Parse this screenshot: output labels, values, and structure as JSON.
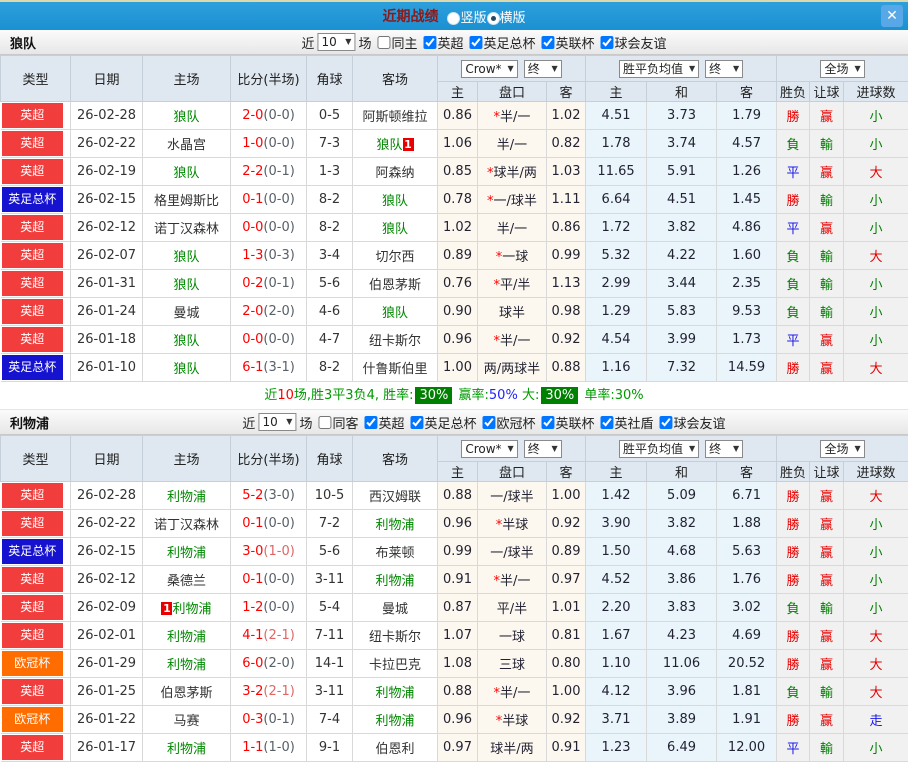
{
  "titlebar": {
    "title": "近期战绩",
    "close_glyph": "✕",
    "radios": [
      {
        "label": "竖版",
        "checked": false
      },
      {
        "label": "横版",
        "checked": true
      }
    ]
  },
  "colors": {
    "leagues": {
      "英超": "#f23d3d",
      "英足总杯": "#1512d0",
      "欧冠杯": "#ff6d00"
    },
    "results": {
      "勝": "#e60000",
      "負": "#008000",
      "平": "#1a1ae6",
      "赢": "#e60000",
      "輸": "#008000",
      "走": "#1a1ae6",
      "大": "#e60000",
      "小": "#008000"
    },
    "team_highlight": "#008800",
    "score_ft": "#ff0000",
    "score_ht": "#586068",
    "score_ht_alt": "#e06666",
    "summary_badge_bg": "#008000"
  },
  "table_header": {
    "main_cols": [
      "类型",
      "日期",
      "主场",
      "比分(半场)",
      "角球",
      "客场"
    ],
    "odds_selects": [
      "Crow*",
      "终"
    ],
    "avg_selects": [
      "胜平负均值",
      "终"
    ],
    "result_selects": [
      "全场"
    ],
    "sub_cols": [
      "主",
      "盘口",
      "客",
      "主",
      "和",
      "客",
      "胜负",
      "让球",
      "进球数"
    ]
  },
  "sections": [
    {
      "team": "狼队",
      "filters": {
        "prefix": "近",
        "count": "10",
        "suffix": "场",
        "venue": {
          "label": "同主",
          "checked": false
        },
        "leagues": [
          {
            "label": "英超",
            "checked": true
          },
          {
            "label": "英足总杯",
            "checked": true
          },
          {
            "label": "英联杯",
            "checked": true
          },
          {
            "label": "球会友谊",
            "checked": true
          }
        ]
      },
      "rows": [
        {
          "league": "英超",
          "date": "26-02-28",
          "home": "狼队",
          "home_green": true,
          "home_card": "",
          "ft": "2-0",
          "ht": "(0-0)",
          "ht_red": false,
          "corner": "0-5",
          "away": "阿斯顿维拉",
          "away_green": false,
          "away_card": "",
          "o1": "0.86",
          "star": true,
          "pan": "半/一",
          "o2": "1.02",
          "m1": "4.51",
          "m2": "3.73",
          "m3": "1.79",
          "r1": "勝",
          "r2": "赢",
          "r3": "小"
        },
        {
          "league": "英超",
          "date": "26-02-22",
          "home": "水晶宫",
          "home_green": false,
          "home_card": "",
          "ft": "1-0",
          "ht": "(0-0)",
          "ht_red": false,
          "corner": "7-3",
          "away": "狼队",
          "away_green": true,
          "away_card": "1",
          "o1": "1.06",
          "star": false,
          "pan": "半/一",
          "o2": "0.82",
          "m1": "1.78",
          "m2": "3.74",
          "m3": "4.57",
          "r1": "負",
          "r2": "輸",
          "r3": "小"
        },
        {
          "league": "英超",
          "date": "26-02-19",
          "home": "狼队",
          "home_green": true,
          "home_card": "",
          "ft": "2-2",
          "ht": "(0-1)",
          "ht_red": false,
          "corner": "1-3",
          "away": "阿森纳",
          "away_green": false,
          "away_card": "",
          "o1": "0.85",
          "star": true,
          "pan": "球半/两",
          "o2": "1.03",
          "m1": "11.65",
          "m2": "5.91",
          "m3": "1.26",
          "r1": "平",
          "r2": "赢",
          "r3": "大"
        },
        {
          "league": "英足总杯",
          "date": "26-02-15",
          "home": "格里姆斯比",
          "home_green": false,
          "home_card": "",
          "ft": "0-1",
          "ht": "(0-0)",
          "ht_red": false,
          "corner": "8-2",
          "away": "狼队",
          "away_green": true,
          "away_card": "",
          "o1": "0.78",
          "star": true,
          "pan": "一/球半",
          "o2": "1.11",
          "m1": "6.64",
          "m2": "4.51",
          "m3": "1.45",
          "r1": "勝",
          "r2": "輸",
          "r3": "小"
        },
        {
          "league": "英超",
          "date": "26-02-12",
          "home": "诺丁汉森林",
          "home_green": false,
          "home_card": "",
          "ft": "0-0",
          "ht": "(0-0)",
          "ht_red": false,
          "corner": "8-2",
          "away": "狼队",
          "away_green": true,
          "away_card": "",
          "o1": "1.02",
          "star": false,
          "pan": "半/一",
          "o2": "0.86",
          "m1": "1.72",
          "m2": "3.82",
          "m3": "4.86",
          "r1": "平",
          "r2": "赢",
          "r3": "小"
        },
        {
          "league": "英超",
          "date": "26-02-07",
          "home": "狼队",
          "home_green": true,
          "home_card": "",
          "ft": "1-3",
          "ht": "(0-3)",
          "ht_red": false,
          "corner": "3-4",
          "away": "切尔西",
          "away_green": false,
          "away_card": "",
          "o1": "0.89",
          "star": true,
          "pan": "一球",
          "o2": "0.99",
          "m1": "5.32",
          "m2": "4.22",
          "m3": "1.60",
          "r1": "負",
          "r2": "輸",
          "r3": "大"
        },
        {
          "league": "英超",
          "date": "26-01-31",
          "home": "狼队",
          "home_green": true,
          "home_card": "",
          "ft": "0-2",
          "ht": "(0-1)",
          "ht_red": false,
          "corner": "5-6",
          "away": "伯恩茅斯",
          "away_green": false,
          "away_card": "",
          "o1": "0.76",
          "star": true,
          "pan": "平/半",
          "o2": "1.13",
          "m1": "2.99",
          "m2": "3.44",
          "m3": "2.35",
          "r1": "負",
          "r2": "輸",
          "r3": "小"
        },
        {
          "league": "英超",
          "date": "26-01-24",
          "home": "曼城",
          "home_green": false,
          "home_card": "",
          "ft": "2-0",
          "ht": "(2-0)",
          "ht_red": false,
          "corner": "4-6",
          "away": "狼队",
          "away_green": true,
          "away_card": "",
          "o1": "0.90",
          "star": false,
          "pan": "球半",
          "o2": "0.98",
          "m1": "1.29",
          "m2": "5.83",
          "m3": "9.53",
          "r1": "負",
          "r2": "輸",
          "r3": "小"
        },
        {
          "league": "英超",
          "date": "26-01-18",
          "home": "狼队",
          "home_green": true,
          "home_card": "",
          "ft": "0-0",
          "ht": "(0-0)",
          "ht_red": false,
          "corner": "4-7",
          "away": "纽卡斯尔",
          "away_green": false,
          "away_card": "",
          "o1": "0.96",
          "star": true,
          "pan": "半/一",
          "o2": "0.92",
          "m1": "4.54",
          "m2": "3.99",
          "m3": "1.73",
          "r1": "平",
          "r2": "赢",
          "r3": "小"
        },
        {
          "league": "英足总杯",
          "date": "26-01-10",
          "home": "狼队",
          "home_green": true,
          "home_card": "",
          "ft": "6-1",
          "ht": "(3-1)",
          "ht_red": false,
          "corner": "8-2",
          "away": "什鲁斯伯里",
          "away_green": false,
          "away_card": "",
          "o1": "1.00",
          "star": false,
          "pan": "两/两球半",
          "o2": "0.88",
          "m1": "1.16",
          "m2": "7.32",
          "m3": "14.59",
          "r1": "勝",
          "r2": "赢",
          "r3": "大"
        }
      ],
      "summary": [
        {
          "t": "近",
          "c": "#009900"
        },
        {
          "t": "10",
          "c": "#ff0000"
        },
        {
          "t": "场,胜3平3负4, 胜率:",
          "c": "#009900"
        },
        {
          "t": "30%",
          "badge": true
        },
        {
          "t": " 赢率:",
          "c": "#009900"
        },
        {
          "t": "50%",
          "c": "#2222ff"
        },
        {
          "t": " 大:",
          "c": "#009900"
        },
        {
          "t": "30%",
          "badge": true
        },
        {
          "t": " 单率:",
          "c": "#009900"
        },
        {
          "t": "30%",
          "c": "#009900"
        }
      ]
    },
    {
      "team": "利物浦",
      "filters": {
        "prefix": "近",
        "count": "10",
        "suffix": "场",
        "venue": {
          "label": "同客",
          "checked": false
        },
        "leagues": [
          {
            "label": "英超",
            "checked": true
          },
          {
            "label": "英足总杯",
            "checked": true
          },
          {
            "label": "欧冠杯",
            "checked": true
          },
          {
            "label": "英联杯",
            "checked": true
          },
          {
            "label": "英社盾",
            "checked": true
          },
          {
            "label": "球会友谊",
            "checked": true
          }
        ]
      },
      "rows": [
        {
          "league": "英超",
          "date": "26-02-28",
          "home": "利物浦",
          "home_green": true,
          "home_card": "",
          "ft": "5-2",
          "ht": "(3-0)",
          "ht_red": false,
          "corner": "10-5",
          "away": "西汉姆联",
          "away_green": false,
          "away_card": "",
          "o1": "0.88",
          "star": false,
          "pan": "一/球半",
          "o2": "1.00",
          "m1": "1.42",
          "m2": "5.09",
          "m3": "6.71",
          "r1": "勝",
          "r2": "赢",
          "r3": "大"
        },
        {
          "league": "英超",
          "date": "26-02-22",
          "home": "诺丁汉森林",
          "home_green": false,
          "home_card": "",
          "ft": "0-1",
          "ht": "(0-0)",
          "ht_red": false,
          "corner": "7-2",
          "away": "利物浦",
          "away_green": true,
          "away_card": "",
          "o1": "0.96",
          "star": true,
          "pan": "半球",
          "o2": "0.92",
          "m1": "3.90",
          "m2": "3.82",
          "m3": "1.88",
          "r1": "勝",
          "r2": "赢",
          "r3": "小"
        },
        {
          "league": "英足总杯",
          "date": "26-02-15",
          "home": "利物浦",
          "home_green": true,
          "home_card": "",
          "ft": "3-0",
          "ht": "(1-0)",
          "ht_red": true,
          "corner": "5-6",
          "away": "布莱顿",
          "away_green": false,
          "away_card": "",
          "o1": "0.99",
          "star": false,
          "pan": "一/球半",
          "o2": "0.89",
          "m1": "1.50",
          "m2": "4.68",
          "m3": "5.63",
          "r1": "勝",
          "r2": "赢",
          "r3": "小"
        },
        {
          "league": "英超",
          "date": "26-02-12",
          "home": "桑德兰",
          "home_green": false,
          "home_card": "",
          "ft": "0-1",
          "ht": "(0-0)",
          "ht_red": false,
          "corner": "3-11",
          "away": "利物浦",
          "away_green": true,
          "away_card": "",
          "o1": "0.91",
          "star": true,
          "pan": "半/一",
          "o2": "0.97",
          "m1": "4.52",
          "m2": "3.86",
          "m3": "1.76",
          "r1": "勝",
          "r2": "赢",
          "r3": "小"
        },
        {
          "league": "英超",
          "date": "26-02-09",
          "home": "利物浦",
          "home_green": true,
          "home_card": "1",
          "ft": "1-2",
          "ht": "(0-0)",
          "ht_red": false,
          "corner": "5-4",
          "away": "曼城",
          "away_green": false,
          "away_card": "",
          "o1": "0.87",
          "star": false,
          "pan": "平/半",
          "o2": "1.01",
          "m1": "2.20",
          "m2": "3.83",
          "m3": "3.02",
          "r1": "負",
          "r2": "輸",
          "r3": "小"
        },
        {
          "league": "英超",
          "date": "26-02-01",
          "home": "利物浦",
          "home_green": true,
          "home_card": "",
          "ft": "4-1",
          "ht": "(2-1)",
          "ht_red": true,
          "corner": "7-11",
          "away": "纽卡斯尔",
          "away_green": false,
          "away_card": "",
          "o1": "1.07",
          "star": false,
          "pan": "一球",
          "o2": "0.81",
          "m1": "1.67",
          "m2": "4.23",
          "m3": "4.69",
          "r1": "勝",
          "r2": "赢",
          "r3": "大"
        },
        {
          "league": "欧冠杯",
          "date": "26-01-29",
          "home": "利物浦",
          "home_green": true,
          "home_card": "",
          "ft": "6-0",
          "ht": "(2-0)",
          "ht_red": false,
          "corner": "14-1",
          "away": "卡拉巴克",
          "away_green": false,
          "away_card": "",
          "o1": "1.08",
          "star": false,
          "pan": "三球",
          "o2": "0.80",
          "m1": "1.10",
          "m2": "11.06",
          "m3": "20.52",
          "r1": "勝",
          "r2": "赢",
          "r3": "大"
        },
        {
          "league": "英超",
          "date": "26-01-25",
          "home": "伯恩茅斯",
          "home_green": false,
          "home_card": "",
          "ft": "3-2",
          "ht": "(2-1)",
          "ht_red": true,
          "corner": "3-11",
          "away": "利物浦",
          "away_green": true,
          "away_card": "",
          "o1": "0.88",
          "star": true,
          "pan": "半/一",
          "o2": "1.00",
          "m1": "4.12",
          "m2": "3.96",
          "m3": "1.81",
          "r1": "負",
          "r2": "輸",
          "r3": "大"
        },
        {
          "league": "欧冠杯",
          "date": "26-01-22",
          "home": "马赛",
          "home_green": false,
          "home_card": "",
          "ft": "0-3",
          "ht": "(0-1)",
          "ht_red": false,
          "corner": "7-4",
          "away": "利物浦",
          "away_green": true,
          "away_card": "",
          "o1": "0.96",
          "star": true,
          "pan": "半球",
          "o2": "0.92",
          "m1": "3.71",
          "m2": "3.89",
          "m3": "1.91",
          "r1": "勝",
          "r2": "赢",
          "r3": "走"
        },
        {
          "league": "英超",
          "date": "26-01-17",
          "home": "利物浦",
          "home_green": true,
          "home_card": "",
          "ft": "1-1",
          "ht": "(1-0)",
          "ht_red": false,
          "corner": "9-1",
          "away": "伯恩利",
          "away_green": false,
          "away_card": "",
          "o1": "0.97",
          "star": false,
          "pan": "球半/两",
          "o2": "0.91",
          "m1": "1.23",
          "m2": "6.49",
          "m3": "12.00",
          "r1": "平",
          "r2": "輸",
          "r3": "小"
        }
      ]
    }
  ]
}
